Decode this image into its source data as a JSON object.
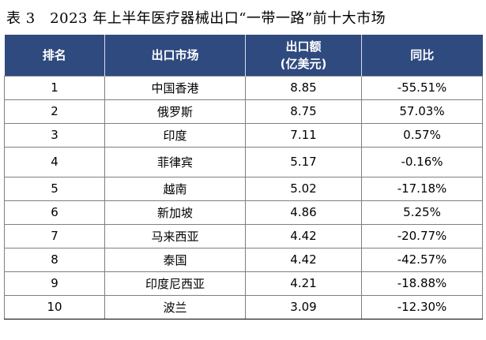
{
  "caption": "表 3　2023 年上半年医疗器械出口“一带一路”前十大市场",
  "headers": {
    "rank": "排名",
    "market": "出口市场",
    "value_line1": "出口额",
    "value_line2": "(亿美元)",
    "yoy": "同比"
  },
  "rows": [
    {
      "rank": "1",
      "market": "中国香港",
      "value": "8.85",
      "yoy": "-55.51%"
    },
    {
      "rank": "2",
      "market": "俄罗斯",
      "value": "8.75",
      "yoy": "57.03%"
    },
    {
      "rank": "3",
      "market": "印度",
      "value": "7.11",
      "yoy": "0.57%"
    },
    {
      "rank": "4",
      "market": "菲律宾",
      "value": "5.17",
      "yoy": "-0.16%"
    },
    {
      "rank": "5",
      "market": "越南",
      "value": "5.02",
      "yoy": "-17.18%"
    },
    {
      "rank": "6",
      "market": "新加坡",
      "value": "4.86",
      "yoy": "5.25%"
    },
    {
      "rank": "7",
      "market": "马来西亚",
      "value": "4.42",
      "yoy": "-20.77%"
    },
    {
      "rank": "8",
      "market": "泰国",
      "value": "4.42",
      "yoy": "-42.57%"
    },
    {
      "rank": "9",
      "market": "印度尼西亚",
      "value": "4.21",
      "yoy": "-18.88%"
    },
    {
      "rank": "10",
      "market": "波兰",
      "value": "3.09",
      "yoy": "-12.30%"
    }
  ],
  "colors": {
    "header_background": "#2f4a7e",
    "header_text": "#ffffff",
    "grid_line": "#7f7f7f"
  }
}
